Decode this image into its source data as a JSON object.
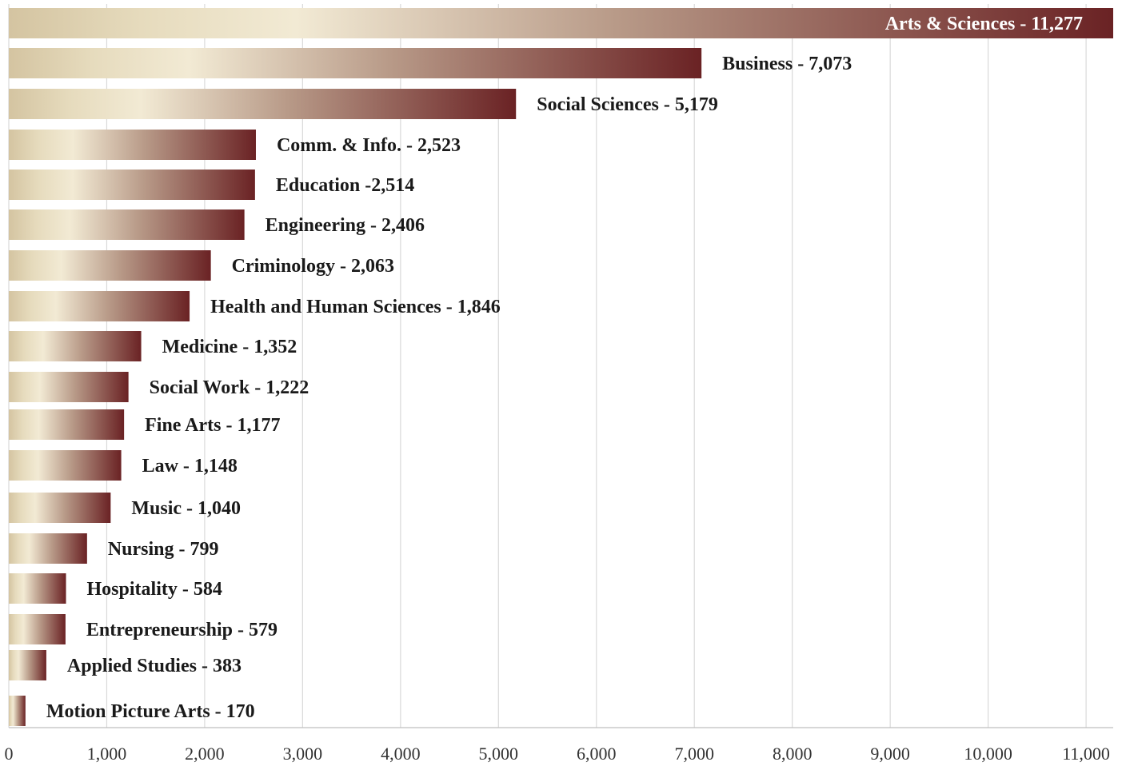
{
  "colors": {
    "gold_dark": "#d4c4a1",
    "gold_light": "#f2ead4",
    "maroon": "#6a2224",
    "grid": "#d9d9d9",
    "label": "#1a1a1a"
  },
  "chart_data": {
    "type": "bar",
    "orientation": "horizontal",
    "categories": [
      "Arts & Sciences",
      "Business",
      "Social Sciences",
      "Comm. & Info.",
      "Education",
      "Engineering",
      "Criminology",
      "Health and Human Sciences",
      "Medicine",
      "Social Work",
      "Fine Arts",
      "Law",
      "Music",
      "Nursing",
      "Hospitality",
      "Entrepreneurship",
      "Applied Studies",
      "Motion Picture Arts"
    ],
    "values": [
      11277,
      7073,
      5179,
      2523,
      2514,
      2406,
      2063,
      1846,
      1352,
      1222,
      1177,
      1148,
      1040,
      799,
      584,
      579,
      383,
      170
    ],
    "data_labels": [
      "Arts & Sciences - 11,277",
      "Business - 7,073",
      "Social Sciences - 5,179",
      "Comm. & Info. - 2,523",
      "Education -2,514",
      "Engineering - 2,406",
      "Criminology - 2,063",
      "Health and Human Sciences - 1,846",
      "Medicine - 1,352",
      "Social Work - 1,222",
      "Fine Arts - 1,177",
      "Law - 1,148",
      "Music - 1,040",
      "Nursing - 799",
      "Hospitality - 584",
      "Entrepreneurship - 579",
      "Applied Studies - 383",
      "Motion Picture Arts - 170"
    ],
    "x_ticks": [
      "0",
      "1,000",
      "2,000",
      "3,000",
      "4,000",
      "5,000",
      "6,000",
      "7,000",
      "8,000",
      "9,000",
      "10,000",
      "11,000"
    ],
    "xlim": [
      0,
      11277
    ],
    "grid": true,
    "legend": "none",
    "title": "",
    "xlabel": "",
    "ylabel": ""
  }
}
